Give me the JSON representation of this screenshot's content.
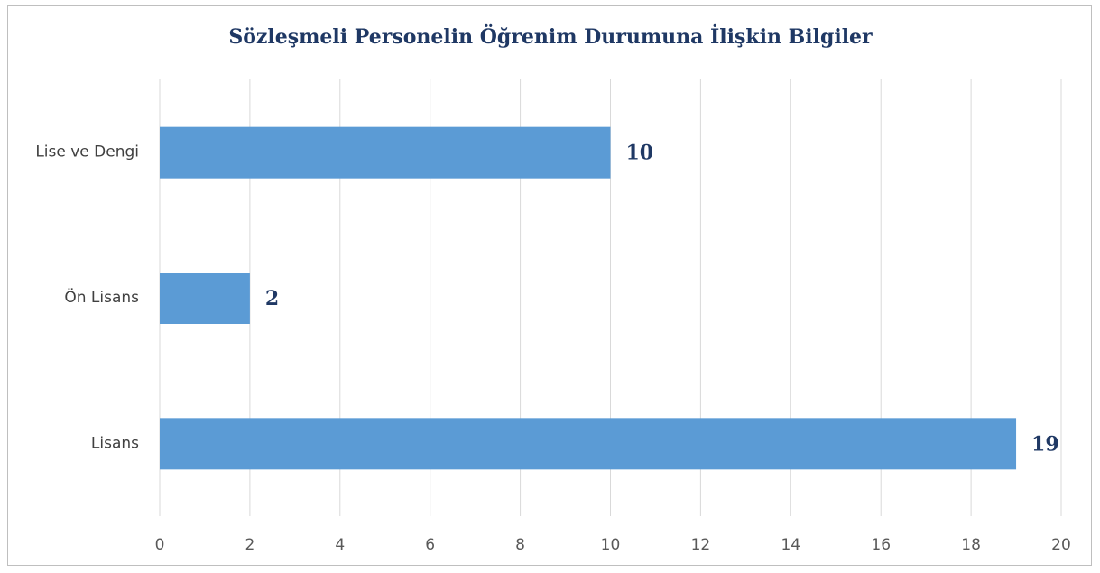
{
  "chart_data": {
    "type": "bar",
    "orientation": "horizontal",
    "title": "Sözleşmeli Personelin Öğrenim Durumuna İlişkin Bilgiler",
    "categories": [
      "Lise ve Dengi",
      "Ön Lisans",
      "Lisans"
    ],
    "values": [
      10,
      2,
      19
    ],
    "color": "#5b9bd5",
    "xlim": [
      0,
      20
    ],
    "xticks": [
      0,
      2,
      4,
      6,
      8,
      10,
      12,
      14,
      16,
      18,
      20
    ],
    "grid": true
  }
}
